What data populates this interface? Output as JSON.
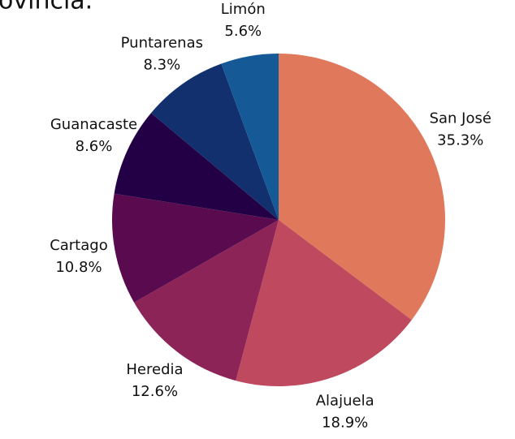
{
  "chart_data": {
    "type": "pie",
    "title": "ovincia.",
    "categories": [
      "San José",
      "Alajuela",
      "Heredia",
      "Cartago",
      "Guanacaste",
      "Puntarenas",
      "Limón"
    ],
    "values": [
      35.3,
      18.9,
      12.6,
      10.8,
      8.6,
      8.3,
      5.6
    ],
    "value_labels": [
      "35.3%",
      "18.9%",
      "12.6%",
      "10.8%",
      "8.6%",
      "8.3%",
      "5.6%"
    ],
    "colors": [
      "#e0785c",
      "#bf4a5f",
      "#8c2458",
      "#5a0b4f",
      "#230046",
      "#13306e",
      "#155a96"
    ]
  }
}
